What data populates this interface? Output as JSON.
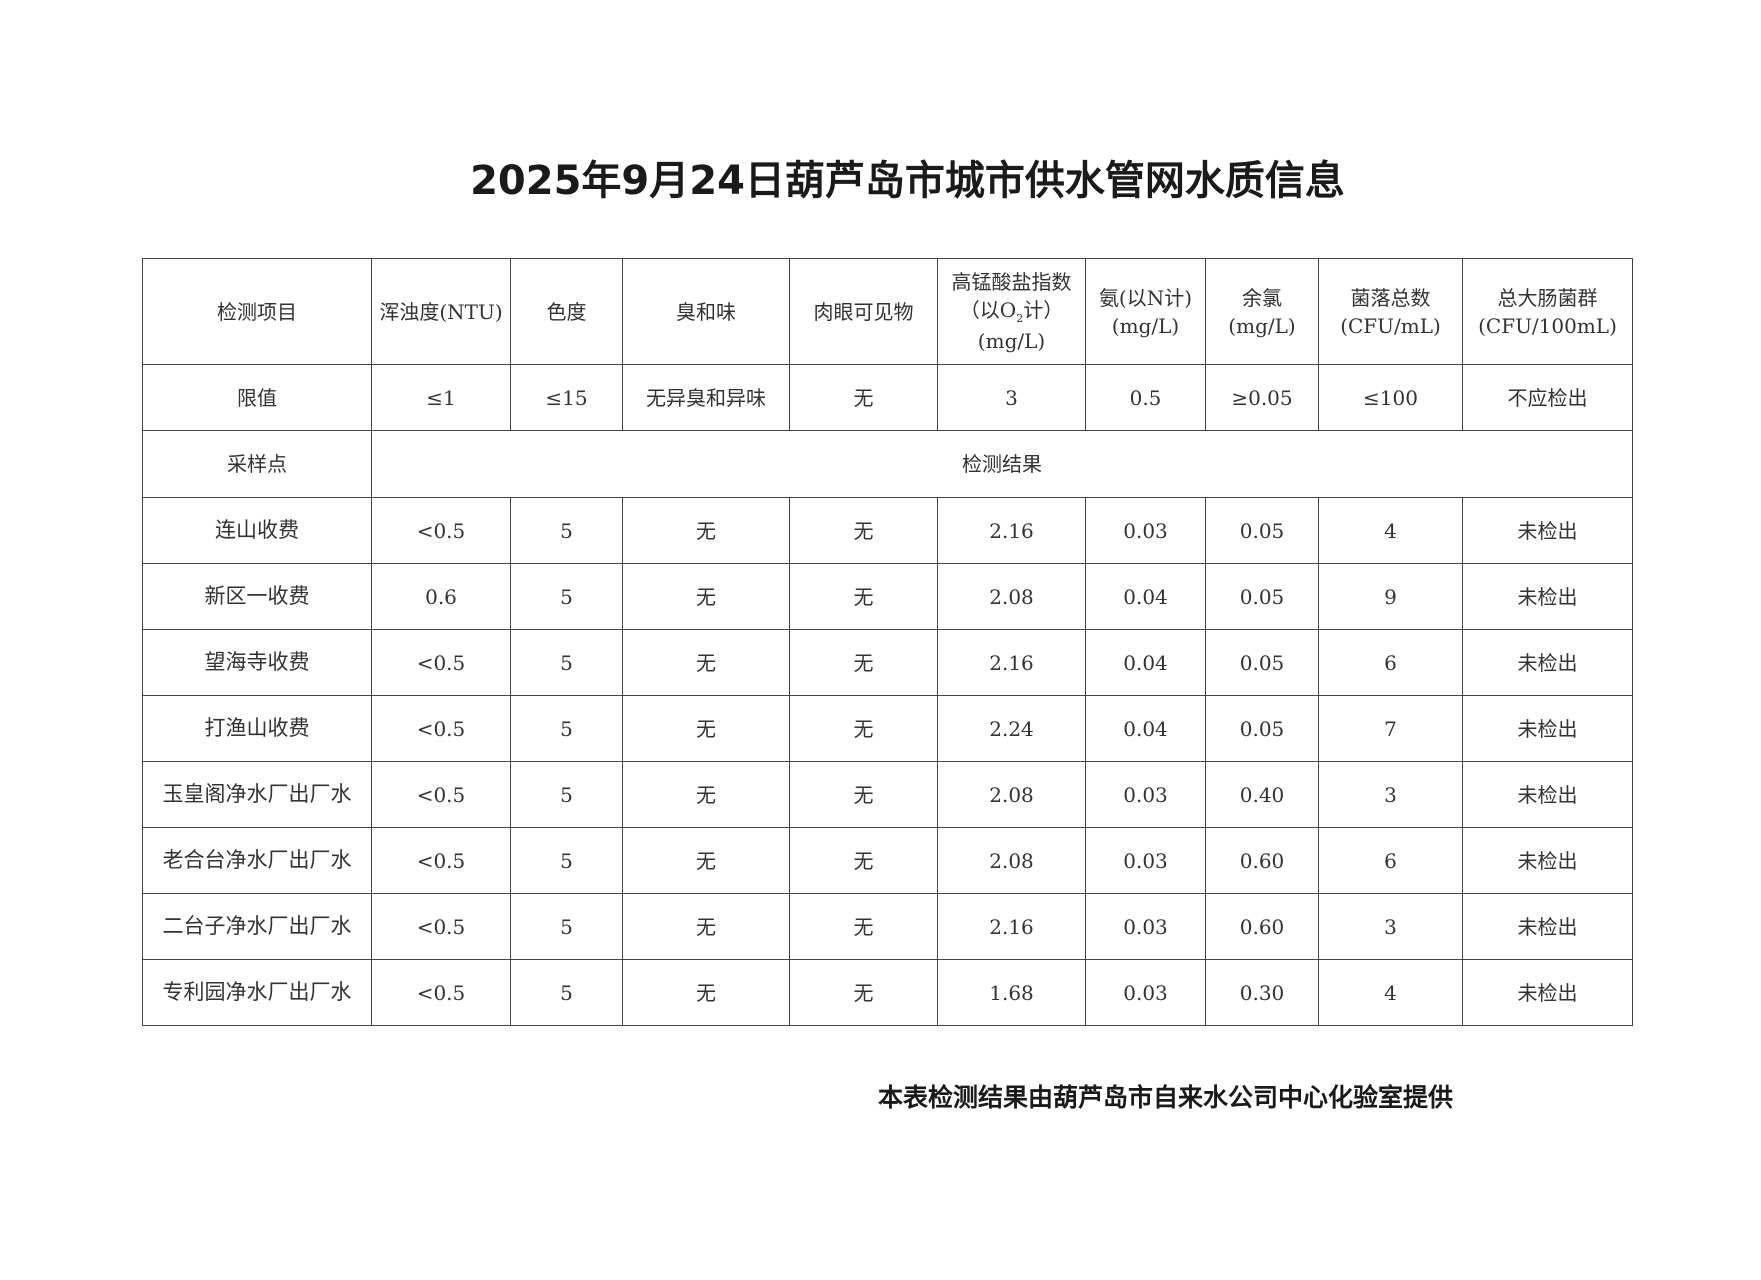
{
  "title": "2025年9月24日葫芦岛市城市供水管网水质信息",
  "table": {
    "headers": [
      {
        "line1": "检测项目"
      },
      {
        "line1": "浑浊度(NTU)"
      },
      {
        "line1": "色度"
      },
      {
        "line1": "臭和味"
      },
      {
        "line1": "肉眼可见物"
      },
      {
        "line1": "高锰酸盐指数",
        "line2_pre": "（以O",
        "line2_sub": "2",
        "line2_post": "计）",
        "line3": "(mg/L)"
      },
      {
        "line1": "氨(以N计)",
        "line2": "(mg/L)"
      },
      {
        "line1": "余氯",
        "line2": "(mg/L)"
      },
      {
        "line1": "菌落总数",
        "line2": "(CFU/mL)"
      },
      {
        "line1": "总大肠菌群",
        "line2": "(CFU/100mL)"
      }
    ],
    "limits": [
      "限值",
      "≤1",
      "≤15",
      "无异臭和异味",
      "无",
      "3",
      "0.5",
      "≥0.05",
      "≤100",
      "不应检出"
    ],
    "sampling_label": "采样点",
    "results_label": "检测结果",
    "rows": [
      [
        "连山收费",
        "<0.5",
        "5",
        "无",
        "无",
        "2.16",
        "0.03",
        "0.05",
        "4",
        "未检出"
      ],
      [
        "新区一收费",
        "0.6",
        "5",
        "无",
        "无",
        "2.08",
        "0.04",
        "0.05",
        "9",
        "未检出"
      ],
      [
        "望海寺收费",
        "<0.5",
        "5",
        "无",
        "无",
        "2.16",
        "0.04",
        "0.05",
        "6",
        "未检出"
      ],
      [
        "打渔山收费",
        "<0.5",
        "5",
        "无",
        "无",
        "2.24",
        "0.04",
        "0.05",
        "7",
        "未检出"
      ],
      [
        "玉皇阁净水厂出厂水",
        "<0.5",
        "5",
        "无",
        "无",
        "2.08",
        "0.03",
        "0.40",
        "3",
        "未检出"
      ],
      [
        "老合台净水厂出厂水",
        "<0.5",
        "5",
        "无",
        "无",
        "2.08",
        "0.03",
        "0.60",
        "6",
        "未检出"
      ],
      [
        "二台子净水厂出厂水",
        "<0.5",
        "5",
        "无",
        "无",
        "2.16",
        "0.03",
        "0.60",
        "3",
        "未检出"
      ],
      [
        "专利园净水厂出厂水",
        "<0.5",
        "5",
        "无",
        "无",
        "1.68",
        "0.03",
        "0.30",
        "4",
        "未检出"
      ]
    ]
  },
  "footer": "本表检测结果由葫芦岛市自来水公司中心化验室提供"
}
